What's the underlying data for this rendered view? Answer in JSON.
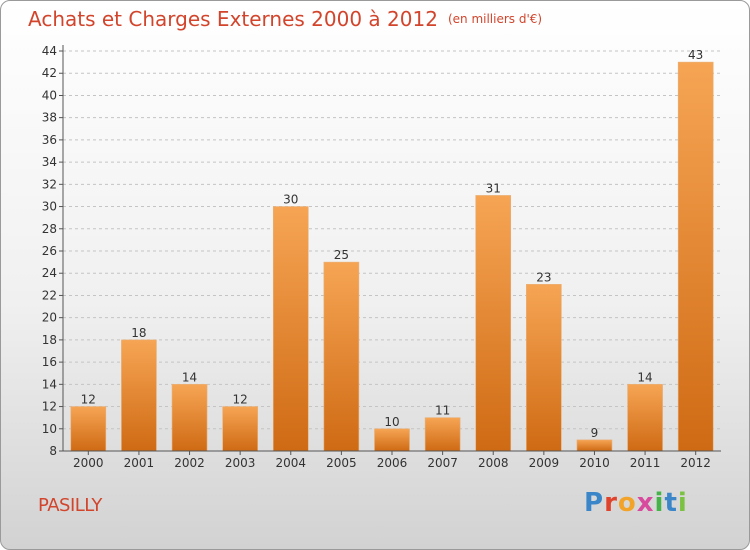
{
  "header": {
    "title": "Achats et Charges Externes 2000 à 2012",
    "subtitle": "(en milliers d'€)"
  },
  "footer": {
    "place_name": "PASILLY",
    "logo_letters": [
      "P",
      "r",
      "o",
      "x",
      "i",
      "t",
      "i"
    ],
    "logo_colors": [
      "#3a86c8",
      "#e0432b",
      "#f2a32a",
      "#d84a9e",
      "#45b34a",
      "#3a86c8",
      "#7cc242"
    ]
  },
  "chart_data": {
    "type": "bar",
    "title": "Achats et Charges Externes 2000 à 2012",
    "subtitle": "(en milliers d'€)",
    "categories": [
      "2000",
      "2001",
      "2002",
      "2003",
      "2004",
      "2005",
      "2006",
      "2007",
      "2008",
      "2009",
      "2010",
      "2011",
      "2012"
    ],
    "values": [
      12,
      18,
      14,
      12,
      30,
      25,
      10,
      11,
      31,
      23,
      9,
      14,
      43
    ],
    "data_labels": [
      "12",
      "18",
      "14",
      "12",
      "30",
      "25",
      "10",
      "11",
      "31",
      "23",
      "9",
      "14",
      "43"
    ],
    "y_ticks": [
      "8",
      "10",
      "12",
      "14",
      "16",
      "18",
      "20",
      "22",
      "24",
      "26",
      "28",
      "30",
      "32",
      "34",
      "36",
      "38",
      "40",
      "42",
      "44"
    ],
    "ylim": [
      8,
      44
    ],
    "grid": "horizontal dashed",
    "bar_color_top": "#f6a554",
    "bar_color_bottom": "#cf6a14",
    "text_color": "#d2452c"
  }
}
